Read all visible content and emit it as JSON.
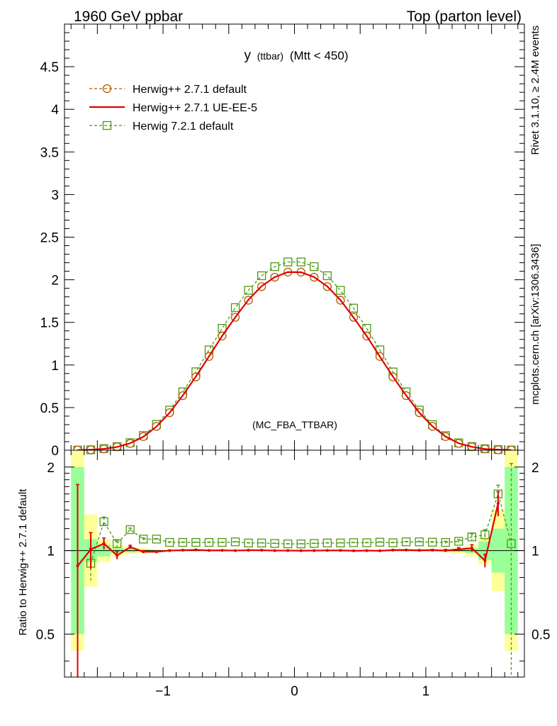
{
  "header": {
    "left": "1960 GeV ppbar",
    "right": "Top (parton level)"
  },
  "side_labels": {
    "rivet": "Rivet 3.1.10, ≥ 2.4M events",
    "mcplots": "mcplots.cern.ch [arXiv:1306.3436]"
  },
  "plot_title": {
    "main": "y",
    "sub": "(ttbar)",
    "rest": "(Mtt < 450)"
  },
  "watermark": "(MC_FBA_TTBAR)",
  "legend": [
    {
      "label": "Herwig++ 2.7.1 default",
      "color": "#b35900",
      "marker": "circle",
      "dash": true
    },
    {
      "label": "Herwig++ 2.7.1 UE-EE-5",
      "color": "#e00000",
      "marker": "none",
      "dash": false
    },
    {
      "label": "Herwig 7.2.1 default",
      "color": "#4c9a10",
      "marker": "square",
      "dash": true
    }
  ],
  "ratio_ylabel": "Ratio to Herwig++ 2.7.1 default",
  "colors": {
    "band_inner": "#99ff99",
    "band_outer": "#ffff99"
  },
  "chart_data": {
    "type": "line",
    "xlim": [
      -1.75,
      1.75
    ],
    "ylim": [
      0,
      5
    ],
    "ratio_ylim": [
      0.35,
      2.3
    ],
    "ratio_scale": "log",
    "x_ticks": [
      -1,
      0,
      1
    ],
    "x_tick_labels": [
      "−1",
      "0",
      "1"
    ],
    "y_ticks": [
      0,
      0.5,
      1,
      1.5,
      2,
      2.5,
      3,
      3.5,
      4,
      4.5
    ],
    "y_tick_labels": [
      "0",
      "0.5",
      "1",
      "1.5",
      "2",
      "2.5",
      "3",
      "3.5",
      "4",
      "4.5"
    ],
    "ratio_ticks": [
      0.5,
      1,
      2
    ],
    "ratio_tick_labels": [
      "0.5",
      "1",
      "2"
    ],
    "x": [
      -1.65,
      -1.55,
      -1.45,
      -1.35,
      -1.25,
      -1.15,
      -1.05,
      -0.95,
      -0.85,
      -0.75,
      -0.65,
      -0.55,
      -0.45,
      -0.35,
      -0.25,
      -0.15,
      -0.05,
      0.05,
      0.15,
      0.25,
      0.35,
      0.45,
      0.55,
      0.65,
      0.75,
      0.85,
      0.95,
      1.05,
      1.15,
      1.25,
      1.35,
      1.45,
      1.55,
      1.65
    ],
    "series": [
      {
        "name": "Herwig++ 2.7.1 default",
        "values": [
          0.002,
          0.005,
          0.015,
          0.04,
          0.08,
          0.16,
          0.28,
          0.44,
          0.64,
          0.86,
          1.1,
          1.34,
          1.56,
          1.76,
          1.92,
          2.03,
          2.09,
          2.09,
          2.03,
          1.92,
          1.76,
          1.56,
          1.34,
          1.1,
          0.86,
          0.64,
          0.44,
          0.28,
          0.16,
          0.08,
          0.04,
          0.015,
          0.005,
          0.002
        ]
      },
      {
        "name": "Herwig++ 2.7.1 UE-EE-5",
        "values": [
          0.0018,
          0.005,
          0.016,
          0.038,
          0.082,
          0.158,
          0.277,
          0.44,
          0.642,
          0.865,
          1.101,
          1.342,
          1.56,
          1.765,
          1.925,
          2.031,
          2.09,
          2.088,
          2.031,
          1.922,
          1.762,
          1.557,
          1.34,
          1.098,
          0.863,
          0.643,
          0.441,
          0.281,
          0.16,
          0.081,
          0.04,
          0.0138,
          0.0074,
          0.002
        ]
      },
      {
        "name": "Herwig 7.2.1 default",
        "values": [
          0.001,
          0.0045,
          0.019,
          0.042,
          0.088,
          0.172,
          0.302,
          0.47,
          0.685,
          0.92,
          1.177,
          1.43,
          1.673,
          1.876,
          2.047,
          2.154,
          2.209,
          2.209,
          2.154,
          2.047,
          1.876,
          1.667,
          1.43,
          1.177,
          0.918,
          0.685,
          0.47,
          0.3,
          0.171,
          0.086,
          0.043,
          0.0168,
          0.008,
          0.0021
        ]
      }
    ],
    "ratio_series": [
      {
        "name": "Herwig++ 2.7.1 UE-EE-5",
        "values": [
          0.88,
          1.01,
          1.06,
          0.96,
          1.03,
          0.99,
          0.99,
          1.0,
          1.003,
          1.006,
          1.001,
          1.002,
          1.0,
          1.003,
          1.003,
          1.0,
          1.0,
          0.999,
          1.0,
          1.001,
          1.001,
          0.998,
          1.0,
          0.998,
          1.004,
          1.005,
          1.002,
          1.004,
          1.0,
          1.01,
          1.02,
          0.92,
          1.48,
          null
        ],
        "errors": [
          0.85,
          0.15,
          0.05,
          0.03,
          0.015,
          0.01,
          0.005,
          0.005,
          0.003,
          0.003,
          0.003,
          0.002,
          0.002,
          0.002,
          0.002,
          0.002,
          0.002,
          0.002,
          0.002,
          0.002,
          0.002,
          0.002,
          0.002,
          0.003,
          0.003,
          0.003,
          0.005,
          0.005,
          0.01,
          0.015,
          0.03,
          0.05,
          0.15,
          0.85
        ]
      },
      {
        "name": "Herwig 7.2.1 default",
        "values": [
          null,
          0.9,
          1.27,
          1.06,
          1.19,
          1.1,
          1.1,
          1.07,
          1.07,
          1.07,
          1.07,
          1.07,
          1.075,
          1.065,
          1.065,
          1.061,
          1.057,
          1.057,
          1.061,
          1.065,
          1.065,
          1.068,
          1.067,
          1.072,
          1.067,
          1.075,
          1.075,
          1.072,
          1.07,
          1.08,
          1.12,
          1.14,
          1.6,
          1.06
        ],
        "errors": [
          0,
          0.12,
          0.05,
          0.03,
          0.015,
          0.01,
          0.005,
          0.005,
          0.003,
          0.003,
          0.003,
          0.002,
          0.002,
          0.002,
          0.002,
          0.002,
          0.002,
          0.002,
          0.002,
          0.002,
          0.002,
          0.002,
          0.002,
          0.003,
          0.003,
          0.003,
          0.005,
          0.005,
          0.01,
          0.015,
          0.03,
          0.05,
          0.12,
          1.0
        ]
      }
    ],
    "ratio_band_inner": [
      2.0,
      1.1,
      1.05,
      1.02,
      1.015,
      1.01,
      1.005,
      1.005,
      1.004,
      1.004,
      1.003,
      1.003,
      1.003,
      1.003,
      1.003,
      1.003,
      1.003,
      1.003,
      1.003,
      1.003,
      1.003,
      1.003,
      1.003,
      1.003,
      1.003,
      1.003,
      1.003,
      1.004,
      1.006,
      1.01,
      1.02,
      1.08,
      1.2,
      2.0
    ],
    "ratio_band_outer": [
      2.3,
      1.35,
      1.1,
      1.05,
      1.03,
      1.02,
      1.01,
      1.008,
      1.006,
      1.005,
      1.004,
      1.004,
      1.004,
      1.004,
      1.004,
      1.004,
      1.004,
      1.004,
      1.004,
      1.004,
      1.004,
      1.004,
      1.004,
      1.004,
      1.005,
      1.006,
      1.008,
      1.01,
      1.015,
      1.025,
      1.05,
      1.12,
      1.4,
      2.3
    ],
    "bin_width": 0.1
  }
}
